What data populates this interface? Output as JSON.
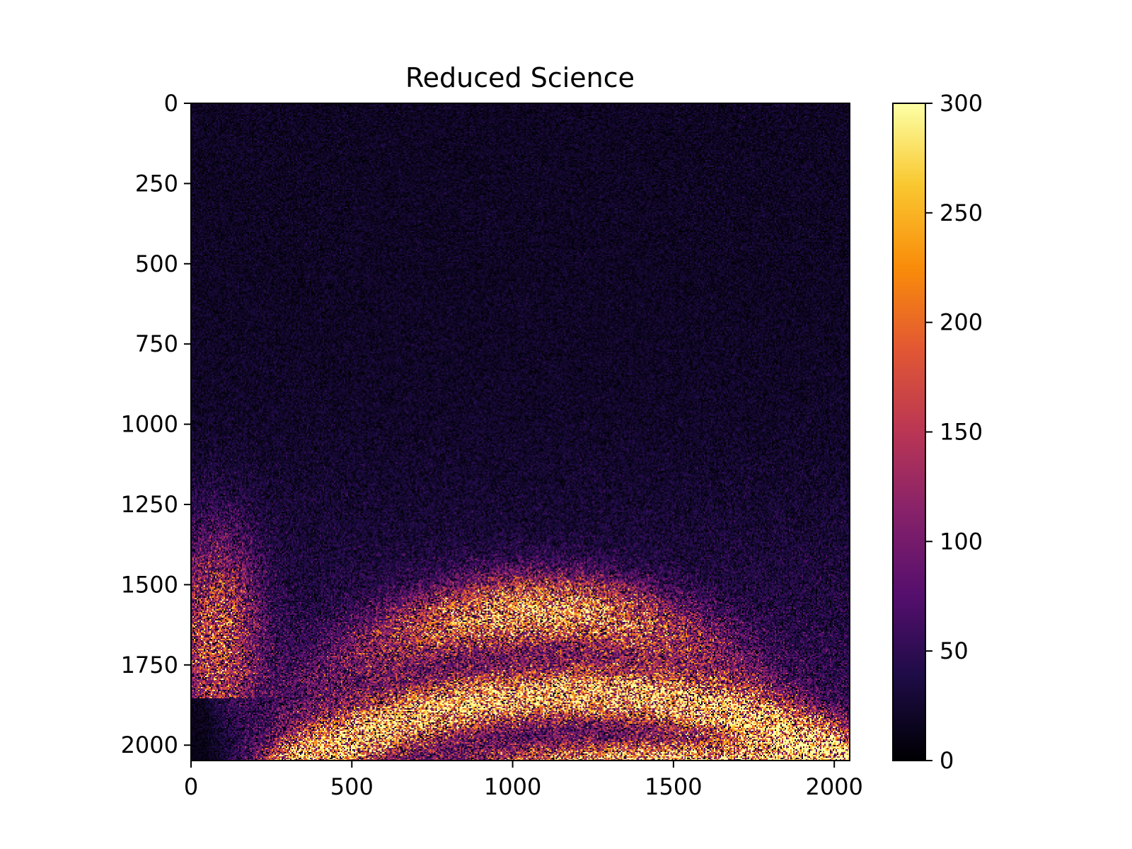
{
  "chart_data": {
    "type": "heatmap",
    "title": "Reduced Science",
    "xlabel": "",
    "ylabel": "",
    "xlim": [
      0,
      2048
    ],
    "ylim": [
      2048,
      0
    ],
    "xticks": [
      0,
      500,
      1000,
      1500,
      2000
    ],
    "xtick_labels": [
      "0",
      "500",
      "1000",
      "1500",
      "2000"
    ],
    "yticks": [
      0,
      250,
      500,
      750,
      1000,
      1250,
      1500,
      1750,
      2000
    ],
    "ytick_labels": [
      "0",
      "250",
      "500",
      "750",
      "1000",
      "1250",
      "1500",
      "1750",
      "2000"
    ],
    "colormap": "inferno",
    "colorbar": {
      "range": [
        0,
        300
      ],
      "ticks": [
        0,
        50,
        100,
        150,
        200,
        250,
        300
      ],
      "tick_labels": [
        "0",
        "50",
        "100",
        "150",
        "200",
        "250",
        "300"
      ]
    },
    "intensity_features": [
      {
        "feature": "background",
        "x_range": [
          0,
          2048
        ],
        "y_range": [
          0,
          1000
        ],
        "approx_value": 20
      },
      {
        "feature": "inner bright arc",
        "center_x": 1100,
        "center_y": 1560,
        "approx_value": 260
      },
      {
        "feature": "middle bright arc",
        "center_x": 1300,
        "center_y": 1860,
        "approx_value": 280
      },
      {
        "feature": "bottom bright edge",
        "center_x": 1550,
        "center_y": 2020,
        "approx_value": 290
      }
    ]
  }
}
